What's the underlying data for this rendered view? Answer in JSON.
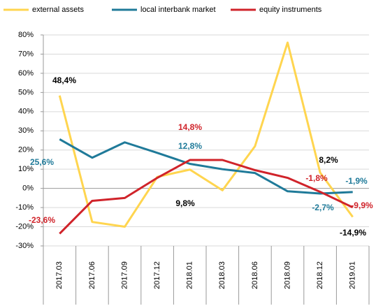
{
  "chart_data": {
    "type": "line",
    "categories": [
      "2017.03",
      "2017.06",
      "2017.09",
      "2017.12",
      "2018.01",
      "2018.03",
      "2018.06",
      "2018.09",
      "2018.12",
      "2019.01"
    ],
    "series": [
      {
        "name": "external assets",
        "color": "#FFD54F",
        "values": [
          48.4,
          -17.5,
          -20,
          6,
          9.8,
          -1,
          22,
          76,
          8.2,
          -14.9
        ],
        "value_labels": [
          "48,4%",
          null,
          null,
          null,
          "9,8%",
          null,
          null,
          null,
          "8,2%",
          "-14,9%"
        ]
      },
      {
        "name": "local interbank market",
        "color": "#1F7A99",
        "values": [
          25.6,
          16,
          24,
          18.5,
          12.8,
          10,
          8,
          -1.5,
          -2.7,
          -1.9
        ],
        "value_labels": [
          "25,6%",
          null,
          null,
          null,
          "12,8%",
          null,
          null,
          null,
          "-2,7%",
          "-1,9%"
        ]
      },
      {
        "name": "equity instruments",
        "color": "#D0232A",
        "values": [
          -23.6,
          -6.5,
          -5,
          5.5,
          14.8,
          14.8,
          9.5,
          5.5,
          -1.8,
          -9.9
        ],
        "value_labels": [
          "-23,6%",
          null,
          null,
          null,
          "14,8%",
          null,
          null,
          null,
          "-1,8%",
          "-9,9%"
        ]
      }
    ],
    "ylim": [
      -30,
      80
    ],
    "yticks": [
      {
        "value": -30,
        "label": "-30%"
      },
      {
        "value": -20,
        "label": "-20%"
      },
      {
        "value": -10,
        "label": "-10%"
      },
      {
        "value": 0,
        "label": "0%"
      },
      {
        "value": 10,
        "label": "10%"
      },
      {
        "value": 20,
        "label": "20%"
      },
      {
        "value": 30,
        "label": "30%"
      },
      {
        "value": 40,
        "label": "40%"
      },
      {
        "value": 50,
        "label": "50%"
      },
      {
        "value": 60,
        "label": "60%"
      },
      {
        "value": 70,
        "label": "70%"
      },
      {
        "value": 80,
        "label": "80%"
      }
    ],
    "grid": true,
    "legend": "top"
  }
}
